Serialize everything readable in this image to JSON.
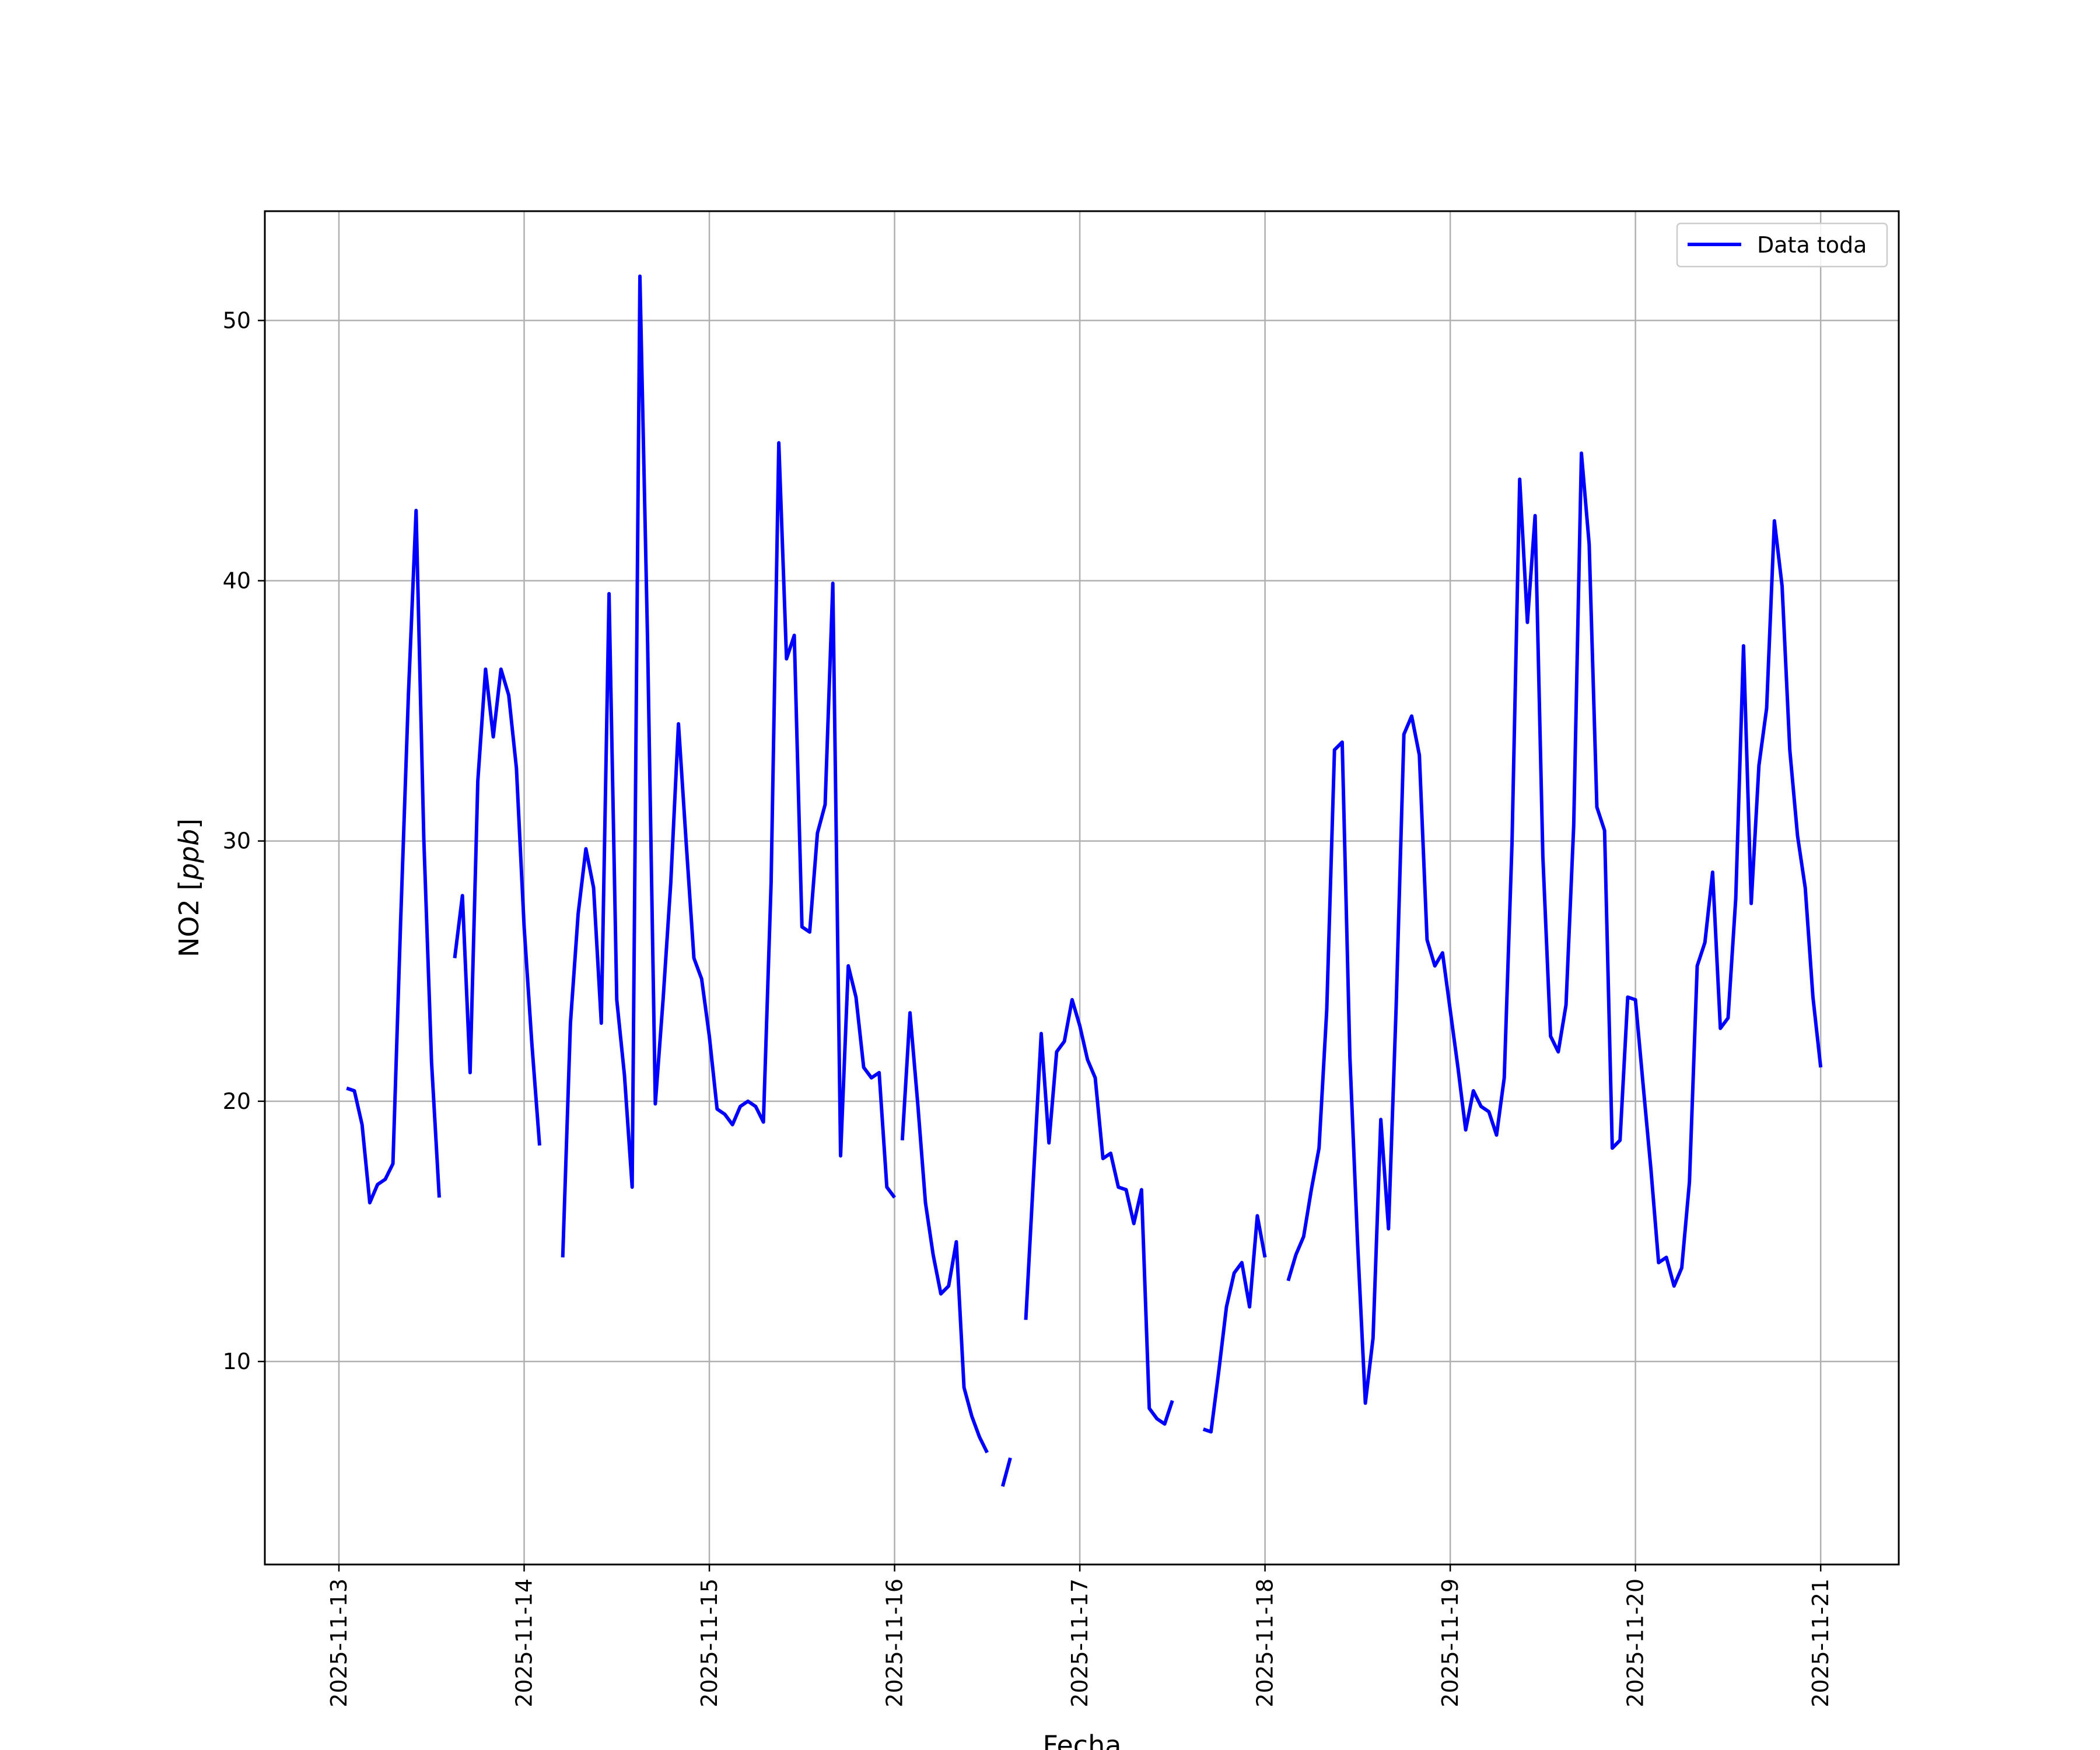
{
  "chart_data": {
    "type": "line",
    "title": "",
    "xlabel": "Fecha",
    "ylabel": "NO2 [ppb]",
    "ylabel_parts": {
      "prefix": "NO2 [",
      "unit": "ppb",
      "suffix": "]"
    },
    "x_tick_labels": [
      "2025-11-13",
      "2025-11-14",
      "2025-11-15",
      "2025-11-16",
      "2025-11-17",
      "2025-11-18",
      "2025-11-19",
      "2025-11-20",
      "2025-11-21"
    ],
    "y_tick_labels": [
      "10",
      "20",
      "30",
      "40",
      "50"
    ],
    "xlim": [
      "2025-11-12T14:24",
      "2025-11-21T10:07"
    ],
    "ylim": [
      2.2,
      54.2
    ],
    "grid": true,
    "legend": {
      "placement": "top-right",
      "entries": [
        "Data toda"
      ]
    },
    "colors": {
      "line": "#0000ff",
      "grid": "#b0b0b0"
    },
    "series": [
      {
        "name": "Data toda",
        "segments": [
          {
            "x": [
              "2025-11-13T01:00",
              "2025-11-13T02:00",
              "2025-11-13T03:00",
              "2025-11-13T04:00",
              "2025-11-13T05:00",
              "2025-11-13T06:00",
              "2025-11-13T07:00",
              "2025-11-13T08:00",
              "2025-11-13T09:00",
              "2025-11-13T10:00",
              "2025-11-13T11:00",
              "2025-11-13T12:00",
              "2025-11-13T13:00"
            ],
            "y": [
              20.5,
              20.4,
              19.1,
              16.1,
              16.8,
              17.0,
              17.6,
              26.9,
              35.6,
              42.7,
              30.1,
              21.5,
              16.3
            ]
          },
          {
            "x": [
              "2025-11-13T15:00",
              "2025-11-13T16:00",
              "2025-11-13T17:00",
              "2025-11-13T18:00",
              "2025-11-13T19:00",
              "2025-11-13T20:00",
              "2025-11-13T21:00",
              "2025-11-13T22:00",
              "2025-11-13T23:00",
              "2025-11-14T00:00",
              "2025-11-14T01:00",
              "2025-11-14T02:00"
            ],
            "y": [
              25.5,
              27.9,
              21.1,
              32.3,
              36.6,
              34.0,
              36.6,
              35.6,
              32.8,
              26.7,
              22.2,
              18.3
            ]
          },
          {
            "x": [
              "2025-11-14T05:00",
              "2025-11-14T06:00",
              "2025-11-14T07:00",
              "2025-11-14T08:00",
              "2025-11-14T09:00",
              "2025-11-14T10:00",
              "2025-11-14T11:00",
              "2025-11-14T12:00",
              "2025-11-14T13:00",
              "2025-11-14T14:00",
              "2025-11-14T15:00",
              "2025-11-14T16:00",
              "2025-11-14T17:00",
              "2025-11-14T18:00",
              "2025-11-14T19:00",
              "2025-11-14T20:00",
              "2025-11-14T21:00",
              "2025-11-14T22:00",
              "2025-11-14T23:00",
              "2025-11-15T00:00",
              "2025-11-15T01:00",
              "2025-11-15T02:00",
              "2025-11-15T03:00",
              "2025-11-15T04:00",
              "2025-11-15T05:00",
              "2025-11-15T06:00",
              "2025-11-15T07:00",
              "2025-11-15T08:00",
              "2025-11-15T09:00",
              "2025-11-15T10:00",
              "2025-11-15T11:00",
              "2025-11-15T12:00",
              "2025-11-15T13:00",
              "2025-11-15T14:00",
              "2025-11-15T15:00",
              "2025-11-15T16:00",
              "2025-11-15T17:00",
              "2025-11-15T18:00",
              "2025-11-15T19:00",
              "2025-11-15T20:00",
              "2025-11-15T21:00",
              "2025-11-15T22:00",
              "2025-11-15T23:00",
              "2025-11-16T00:00"
            ],
            "y": [
              14.0,
              23.0,
              27.2,
              29.7,
              28.2,
              23.0,
              39.5,
              23.9,
              21.0,
              16.7,
              51.7,
              37.6,
              19.9,
              23.9,
              28.4,
              34.5,
              29.9,
              25.5,
              24.7,
              22.5,
              19.7,
              19.5,
              19.1,
              19.8,
              20.0,
              19.8,
              19.2,
              28.4,
              45.3,
              37.0,
              37.9,
              26.7,
              26.5,
              30.3,
              31.4,
              39.9,
              17.9,
              25.2,
              24.0,
              21.3,
              20.9,
              21.1,
              16.7,
              16.3
            ]
          },
          {
            "x": [
              "2025-11-16T01:00",
              "2025-11-16T02:00",
              "2025-11-16T03:00",
              "2025-11-16T04:00",
              "2025-11-16T05:00",
              "2025-11-16T06:00",
              "2025-11-16T07:00",
              "2025-11-16T08:00",
              "2025-11-16T09:00",
              "2025-11-16T10:00",
              "2025-11-16T11:00",
              "2025-11-16T12:00"
            ],
            "y": [
              18.5,
              23.4,
              19.9,
              16.1,
              14.1,
              12.6,
              12.9,
              14.6,
              9.0,
              7.9,
              7.1,
              6.5
            ]
          },
          {
            "x": [
              "2025-11-16T14:00",
              "2025-11-16T15:00"
            ],
            "y": [
              5.2,
              6.3
            ]
          },
          {
            "x": [
              "2025-11-16T17:00",
              "2025-11-16T18:00",
              "2025-11-16T19:00",
              "2025-11-16T20:00",
              "2025-11-16T21:00",
              "2025-11-16T22:00",
              "2025-11-16T23:00",
              "2025-11-17T00:00",
              "2025-11-17T01:00",
              "2025-11-17T02:00",
              "2025-11-17T03:00",
              "2025-11-17T04:00",
              "2025-11-17T05:00",
              "2025-11-17T06:00",
              "2025-11-17T07:00",
              "2025-11-17T08:00",
              "2025-11-17T09:00",
              "2025-11-17T10:00",
              "2025-11-17T11:00",
              "2025-11-17T12:00"
            ],
            "y": [
              11.6,
              17.1,
              22.6,
              18.4,
              21.9,
              22.3,
              23.9,
              22.9,
              21.6,
              20.9,
              17.8,
              18.0,
              16.7,
              16.6,
              15.3,
              16.6,
              8.2,
              7.8,
              7.6,
              8.5
            ]
          },
          {
            "x": [
              "2025-11-17T16:00",
              "2025-11-17T17:00",
              "2025-11-17T18:00",
              "2025-11-17T19:00",
              "2025-11-17T20:00",
              "2025-11-17T21:00",
              "2025-11-17T22:00",
              "2025-11-17T23:00",
              "2025-11-18T00:00"
            ],
            "y": [
              7.4,
              7.3,
              9.6,
              12.1,
              13.4,
              13.8,
              12.1,
              15.6,
              14.0
            ]
          },
          {
            "x": [
              "2025-11-18T03:00",
              "2025-11-18T04:00",
              "2025-11-18T05:00",
              "2025-11-18T06:00",
              "2025-11-18T07:00",
              "2025-11-18T08:00",
              "2025-11-18T09:00",
              "2025-11-18T10:00",
              "2025-11-18T11:00",
              "2025-11-18T12:00",
              "2025-11-18T13:00",
              "2025-11-18T14:00",
              "2025-11-18T15:00",
              "2025-11-18T16:00",
              "2025-11-18T17:00",
              "2025-11-18T18:00",
              "2025-11-18T19:00",
              "2025-11-18T20:00",
              "2025-11-18T21:00",
              "2025-11-18T22:00",
              "2025-11-18T23:00",
              "2025-11-19T00:00",
              "2025-11-19T01:00",
              "2025-11-19T02:00",
              "2025-11-19T03:00",
              "2025-11-19T04:00",
              "2025-11-19T05:00",
              "2025-11-19T06:00",
              "2025-11-19T07:00",
              "2025-11-19T08:00",
              "2025-11-19T09:00",
              "2025-11-19T10:00",
              "2025-11-19T11:00",
              "2025-11-19T12:00",
              "2025-11-19T13:00",
              "2025-11-19T14:00",
              "2025-11-19T15:00",
              "2025-11-19T16:00",
              "2025-11-19T17:00",
              "2025-11-19T18:00",
              "2025-11-19T19:00",
              "2025-11-19T20:00",
              "2025-11-19T21:00",
              "2025-11-19T22:00",
              "2025-11-19T23:00",
              "2025-11-20T00:00",
              "2025-11-20T01:00",
              "2025-11-20T02:00",
              "2025-11-20T03:00",
              "2025-11-20T04:00",
              "2025-11-20T05:00",
              "2025-11-20T06:00",
              "2025-11-20T07:00",
              "2025-11-20T08:00",
              "2025-11-20T09:00",
              "2025-11-20T10:00",
              "2025-11-20T11:00",
              "2025-11-20T12:00",
              "2025-11-20T13:00",
              "2025-11-20T14:00",
              "2025-11-20T15:00",
              "2025-11-20T16:00",
              "2025-11-20T17:00",
              "2025-11-20T18:00",
              "2025-11-20T19:00",
              "2025-11-20T20:00",
              "2025-11-20T21:00",
              "2025-11-20T22:00",
              "2025-11-20T23:00",
              "2025-11-21T00:00"
            ],
            "y": [
              13.1,
              14.1,
              14.8,
              16.6,
              18.2,
              23.5,
              33.5,
              33.8,
              21.7,
              14.5,
              8.4,
              10.9,
              19.3,
              15.1,
              23.7,
              34.1,
              34.8,
              33.3,
              26.2,
              25.2,
              25.7,
              23.5,
              21.3,
              18.9,
              20.4,
              19.8,
              19.6,
              18.7,
              20.9,
              29.9,
              43.9,
              38.4,
              42.5,
              29.4,
              22.5,
              21.9,
              23.7,
              30.6,
              44.9,
              41.4,
              31.3,
              30.4,
              18.2,
              18.5,
              24.0,
              23.9,
              20.6,
              17.4,
              13.8,
              14.0,
              12.9,
              13.6,
              16.9,
              25.2,
              26.1,
              28.8,
              22.8,
              23.2,
              27.8,
              37.5,
              27.6,
              32.9,
              35.1,
              42.3,
              39.8,
              33.5,
              30.2,
              28.2,
              24.0,
              21.3
            ]
          }
        ]
      }
    ]
  }
}
